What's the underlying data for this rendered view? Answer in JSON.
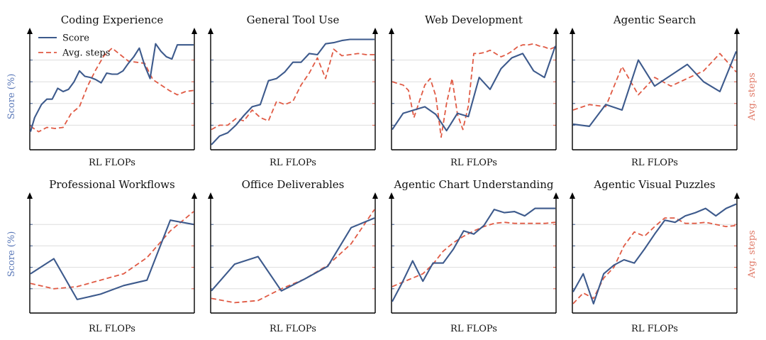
{
  "colors": {
    "score": "#3d5a8c",
    "steps": "#e05a44",
    "grid": "#dddddd",
    "axis": "#000000",
    "ylabel_left": "#5a78b8",
    "ylabel_right": "#e07a68"
  },
  "ylabel_left": "Score (%)",
  "ylabel_right": "Avg. steps",
  "chart_data": [
    {
      "type": "line",
      "title": "Coding Experience",
      "xlabel": "RL FLOPs",
      "legend": {
        "placement": "top-left",
        "entries": [
          "Score",
          "Avg. steps"
        ]
      },
      "grid": true,
      "ylim": [
        0,
        1
      ],
      "series": [
        {
          "name": "Score",
          "style": "solid",
          "color": "#3d5a8c",
          "x": [
            0,
            0.025,
            0.067,
            0.1,
            0.133,
            0.167,
            0.2,
            0.233,
            0.267,
            0.3,
            0.333,
            0.367,
            0.4,
            0.433,
            0.467,
            0.5,
            0.533,
            0.567,
            0.6,
            0.633,
            0.667,
            0.7,
            0.733,
            0.767,
            0.8,
            0.833,
            0.867,
            0.9,
            0.933,
            0.967,
            1.0
          ],
          "y": [
            0.14,
            0.27,
            0.39,
            0.44,
            0.44,
            0.54,
            0.51,
            0.53,
            0.6,
            0.7,
            0.65,
            0.64,
            0.62,
            0.59,
            0.68,
            0.67,
            0.67,
            0.7,
            0.77,
            0.83,
            0.91,
            0.75,
            0.63,
            0.95,
            0.88,
            0.83,
            0.81,
            0.94,
            0.94,
            0.94,
            0.94
          ]
        },
        {
          "name": "Avg. steps",
          "style": "dashed",
          "color": "#e05a44",
          "x": [
            0,
            0.05,
            0.1,
            0.15,
            0.2,
            0.25,
            0.3,
            0.35,
            0.4,
            0.45,
            0.5,
            0.55,
            0.6,
            0.65,
            0.7,
            0.75,
            0.8,
            0.85,
            0.9,
            0.95,
            1.0
          ],
          "y": [
            0.19,
            0.14,
            0.18,
            0.17,
            0.18,
            0.31,
            0.37,
            0.56,
            0.71,
            0.84,
            0.91,
            0.85,
            0.79,
            0.78,
            0.77,
            0.62,
            0.57,
            0.52,
            0.48,
            0.51,
            0.52
          ]
        }
      ]
    },
    {
      "type": "line",
      "title": "General Tool Use",
      "xlabel": "RL FLOPs",
      "grid": true,
      "ylim": [
        0,
        1
      ],
      "series": [
        {
          "name": "Score",
          "style": "solid",
          "color": "#3d5a8c",
          "x": [
            0,
            0.05,
            0.1,
            0.15,
            0.2,
            0.25,
            0.3,
            0.35,
            0.4,
            0.45,
            0.5,
            0.55,
            0.6,
            0.65,
            0.7,
            0.75,
            0.8,
            0.85,
            0.9,
            0.95,
            1.0
          ],
          "y": [
            0.02,
            0.1,
            0.13,
            0.2,
            0.29,
            0.37,
            0.39,
            0.61,
            0.63,
            0.69,
            0.78,
            0.78,
            0.86,
            0.85,
            0.95,
            0.96,
            0.98,
            0.99,
            0.99,
            0.99,
            0.99
          ]
        },
        {
          "name": "Avg. steps",
          "style": "dashed",
          "color": "#e05a44",
          "x": [
            0,
            0.05,
            0.1,
            0.15,
            0.2,
            0.25,
            0.3,
            0.35,
            0.4,
            0.45,
            0.5,
            0.55,
            0.6,
            0.65,
            0.7,
            0.75,
            0.8,
            0.85,
            0.9,
            0.95,
            1.0
          ],
          "y": [
            0.16,
            0.2,
            0.2,
            0.26,
            0.24,
            0.34,
            0.27,
            0.24,
            0.42,
            0.39,
            0.42,
            0.57,
            0.68,
            0.82,
            0.63,
            0.9,
            0.84,
            0.85,
            0.86,
            0.85,
            0.85
          ]
        }
      ]
    },
    {
      "type": "line",
      "title": "Web Development",
      "xlabel": "RL FLOPs",
      "grid": true,
      "ylim": [
        0,
        1
      ],
      "series": [
        {
          "name": "Score",
          "style": "solid",
          "color": "#3d5a8c",
          "x": [
            0,
            0.067,
            0.133,
            0.2,
            0.267,
            0.333,
            0.4,
            0.467,
            0.533,
            0.6,
            0.667,
            0.733,
            0.8,
            0.867,
            0.933,
            1.0
          ],
          "y": [
            0.16,
            0.31,
            0.34,
            0.37,
            0.3,
            0.15,
            0.31,
            0.28,
            0.64,
            0.53,
            0.72,
            0.82,
            0.86,
            0.7,
            0.64,
            0.93
          ]
        },
        {
          "name": "Avg. steps",
          "style": "dashed",
          "color": "#e05a44",
          "x": [
            0,
            0.067,
            0.1,
            0.133,
            0.2,
            0.233,
            0.267,
            0.3,
            0.333,
            0.367,
            0.4,
            0.433,
            0.467,
            0.5,
            0.533,
            0.567,
            0.6,
            0.633,
            0.667,
            0.7,
            0.733,
            0.767,
            0.8,
            0.833,
            0.867,
            0.9,
            0.933,
            0.967,
            1.0
          ],
          "y": [
            0.6,
            0.57,
            0.52,
            0.27,
            0.57,
            0.63,
            0.47,
            0.09,
            0.4,
            0.63,
            0.3,
            0.16,
            0.38,
            0.86,
            0.86,
            0.87,
            0.89,
            0.86,
            0.83,
            0.85,
            0.88,
            0.92,
            0.94,
            0.94,
            0.95,
            0.93,
            0.92,
            0.9,
            0.92
          ]
        }
      ]
    },
    {
      "type": "line",
      "title": "Agentic Search",
      "xlabel": "RL FLOPs",
      "grid": true,
      "ylim": [
        0,
        1
      ],
      "series": [
        {
          "name": "Score",
          "style": "solid",
          "color": "#3d5a8c",
          "x": [
            0,
            0.1,
            0.2,
            0.3,
            0.4,
            0.5,
            0.6,
            0.7,
            0.8,
            0.9,
            1.0
          ],
          "y": [
            0.21,
            0.19,
            0.39,
            0.34,
            0.8,
            0.56,
            0.66,
            0.76,
            0.6,
            0.51,
            0.88
          ]
        },
        {
          "name": "Avg. steps",
          "style": "dashed",
          "color": "#e05a44",
          "x": [
            0,
            0.1,
            0.2,
            0.3,
            0.4,
            0.5,
            0.6,
            0.7,
            0.8,
            0.9,
            1.0
          ],
          "y": [
            0.34,
            0.39,
            0.37,
            0.74,
            0.48,
            0.64,
            0.56,
            0.63,
            0.7,
            0.86,
            0.69
          ]
        }
      ]
    },
    {
      "type": "line",
      "title": "Professional Workflows",
      "xlabel": "RL FLOPs",
      "grid": true,
      "ylim": [
        0,
        1
      ],
      "series": [
        {
          "name": "Score",
          "style": "solid",
          "color": "#3d5a8c",
          "x": [
            0,
            0.143,
            0.286,
            0.429,
            0.571,
            0.714,
            0.857,
            1.0
          ],
          "y": [
            0.34,
            0.48,
            0.1,
            0.15,
            0.23,
            0.28,
            0.84,
            0.8
          ]
        },
        {
          "name": "Avg. steps",
          "style": "dashed",
          "color": "#e05a44",
          "x": [
            0,
            0.143,
            0.286,
            0.429,
            0.571,
            0.714,
            0.857,
            1.0
          ],
          "y": [
            0.25,
            0.2,
            0.22,
            0.28,
            0.34,
            0.49,
            0.74,
            0.92
          ]
        }
      ]
    },
    {
      "type": "line",
      "title": "Office Deliverables",
      "xlabel": "RL FLOPs",
      "grid": true,
      "ylim": [
        0,
        1
      ],
      "series": [
        {
          "name": "Score",
          "style": "solid",
          "color": "#3d5a8c",
          "x": [
            0,
            0.143,
            0.286,
            0.429,
            0.571,
            0.714,
            0.857,
            1.0
          ],
          "y": [
            0.18,
            0.43,
            0.5,
            0.18,
            0.29,
            0.41,
            0.77,
            0.86
          ]
        },
        {
          "name": "Avg. steps",
          "style": "dashed",
          "color": "#e05a44",
          "x": [
            0,
            0.143,
            0.286,
            0.429,
            0.571,
            0.714,
            0.857,
            1.0
          ],
          "y": [
            0.11,
            0.07,
            0.09,
            0.2,
            0.29,
            0.42,
            0.62,
            0.94
          ]
        }
      ]
    },
    {
      "type": "line",
      "title": "Agentic Chart Understanding",
      "xlabel": "RL FLOPs",
      "grid": true,
      "ylim": [
        0,
        1
      ],
      "series": [
        {
          "name": "Score",
          "style": "solid",
          "color": "#3d5a8c",
          "x": [
            0,
            0.062,
            0.125,
            0.188,
            0.25,
            0.312,
            0.375,
            0.438,
            0.5,
            0.562,
            0.625,
            0.688,
            0.75,
            0.812,
            0.875,
            0.938,
            1.0
          ],
          "y": [
            0.08,
            0.26,
            0.46,
            0.27,
            0.44,
            0.44,
            0.57,
            0.74,
            0.71,
            0.79,
            0.94,
            0.91,
            0.92,
            0.88,
            0.95,
            0.95,
            0.95
          ]
        },
        {
          "name": "Avg. steps",
          "style": "dashed",
          "color": "#e05a44",
          "x": [
            0,
            0.062,
            0.125,
            0.188,
            0.25,
            0.312,
            0.375,
            0.438,
            0.5,
            0.562,
            0.625,
            0.688,
            0.75,
            0.812,
            0.875,
            0.938,
            1.0
          ],
          "y": [
            0.22,
            0.26,
            0.3,
            0.34,
            0.43,
            0.55,
            0.63,
            0.69,
            0.74,
            0.78,
            0.81,
            0.82,
            0.81,
            0.81,
            0.81,
            0.81,
            0.82
          ]
        }
      ]
    },
    {
      "type": "line",
      "title": "Agentic Visual Puzzles",
      "xlabel": "RL FLOPs",
      "grid": true,
      "ylim": [
        0,
        1
      ],
      "series": [
        {
          "name": "Score",
          "style": "solid",
          "color": "#3d5a8c",
          "x": [
            0,
            0.062,
            0.125,
            0.188,
            0.25,
            0.312,
            0.375,
            0.438,
            0.5,
            0.562,
            0.625,
            0.688,
            0.75,
            0.812,
            0.875,
            0.938,
            1.0
          ],
          "y": [
            0.17,
            0.34,
            0.06,
            0.34,
            0.42,
            0.47,
            0.44,
            0.57,
            0.71,
            0.84,
            0.82,
            0.88,
            0.91,
            0.95,
            0.88,
            0.95,
            0.99
          ]
        },
        {
          "name": "Avg. steps",
          "style": "dashed",
          "color": "#e05a44",
          "x": [
            0,
            0.062,
            0.125,
            0.188,
            0.25,
            0.312,
            0.375,
            0.438,
            0.5,
            0.562,
            0.625,
            0.688,
            0.75,
            0.812,
            0.875,
            0.938,
            1.0
          ],
          "y": [
            0.06,
            0.16,
            0.11,
            0.3,
            0.4,
            0.6,
            0.73,
            0.69,
            0.78,
            0.86,
            0.86,
            0.81,
            0.81,
            0.82,
            0.8,
            0.78,
            0.79
          ]
        }
      ]
    }
  ]
}
